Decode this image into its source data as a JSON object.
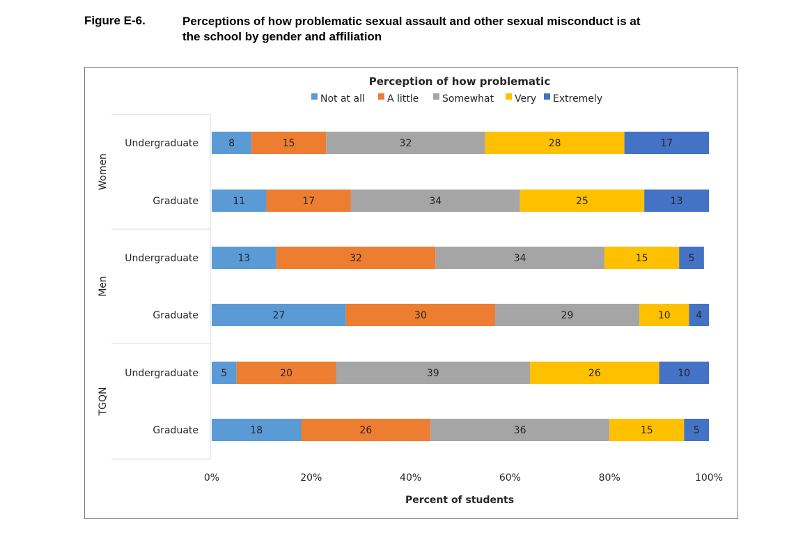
{
  "figure": {
    "label": "Figure E-6.",
    "caption_line1": "Perceptions of how problematic sexual assault and other sexual misconduct is at",
    "caption_line2": "the school by gender and affiliation"
  },
  "chart_data": {
    "type": "bar",
    "orientation": "horizontal",
    "stacked": true,
    "percent": true,
    "title": "Perception of how problematic",
    "xlabel": "Percent of students",
    "ylabel": "",
    "xlim": [
      0,
      100
    ],
    "xticks": [
      0,
      20,
      40,
      60,
      80,
      100
    ],
    "xtick_labels": [
      "0%",
      "20%",
      "40%",
      "60%",
      "80%",
      "100%"
    ],
    "legend_position": "top",
    "groups": [
      "Women",
      "Men",
      "TGQN"
    ],
    "categories": [
      {
        "group": "Women",
        "label": "Undergraduate"
      },
      {
        "group": "Women",
        "label": "Graduate"
      },
      {
        "group": "Men",
        "label": "Undergraduate"
      },
      {
        "group": "Men",
        "label": "Graduate"
      },
      {
        "group": "TGQN",
        "label": "Undergraduate"
      },
      {
        "group": "TGQN",
        "label": "Graduate"
      }
    ],
    "series": [
      {
        "name": "Not at all",
        "color": "#5B9BD5",
        "values": [
          8,
          11,
          13,
          27,
          5,
          18
        ]
      },
      {
        "name": "A little",
        "color": "#ED7D31",
        "values": [
          15,
          17,
          32,
          30,
          20,
          26
        ]
      },
      {
        "name": "Somewhat",
        "color": "#A5A5A5",
        "values": [
          32,
          34,
          34,
          29,
          39,
          36
        ]
      },
      {
        "name": "Very",
        "color": "#FFC000",
        "values": [
          28,
          25,
          15,
          10,
          26,
          15
        ]
      },
      {
        "name": "Extremely",
        "color": "#4472C4",
        "values": [
          17,
          13,
          5,
          4,
          10,
          5
        ]
      }
    ]
  }
}
